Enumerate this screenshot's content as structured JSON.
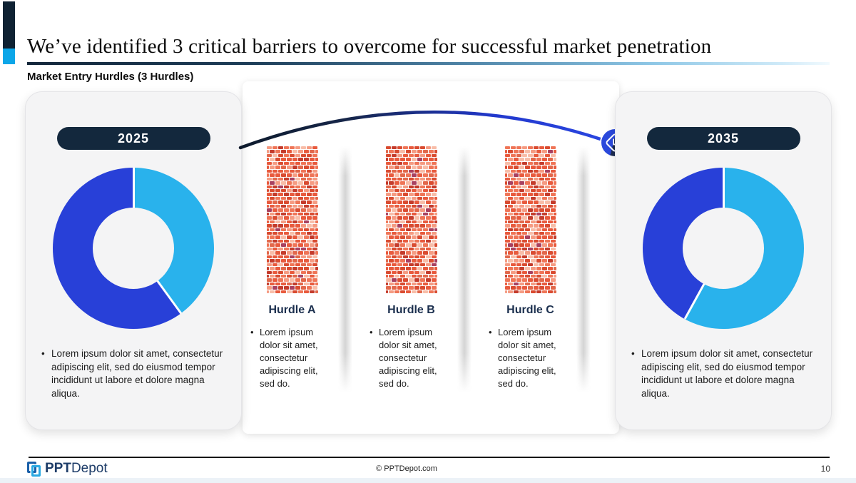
{
  "slide": {
    "title": "We’ve identified 3 critical barriers to overcome for successful market penetration",
    "subtitle": "Market Entry Hurdles (3 Hurdles)",
    "page_number": "10",
    "copyright": "© PPTDepot.com",
    "logo_bold": "PPT",
    "logo_regular": "Depot"
  },
  "timeline": {
    "start": {
      "year": "2025",
      "bullet": "Lorem ipsum dolor sit amet, consectetur adipiscing elit, sed do eiusmod tempor incididunt ut labore et dolore magna aliqua."
    },
    "end": {
      "year": "2035",
      "bullet": "Lorem ipsum dolor sit amet, consectetur adipiscing elit, sed do eiusmod tempor incididunt ut labore et dolore magna aliqua."
    }
  },
  "hurdles": [
    {
      "label": "Hurdle A",
      "bullet": "Lorem ipsum dolor sit amet, consectetur adipiscing elit, sed do."
    },
    {
      "label": "Hurdle B",
      "bullet": "Lorem ipsum dolor sit amet, consectetur adipiscing elit, sed do."
    },
    {
      "label": "Hurdle C",
      "bullet": "Lorem ipsum dolor sit amet, consectetur adipiscing elit, sed do."
    }
  ],
  "chart_data": [
    {
      "type": "pie",
      "subtype": "donut",
      "title": "2025",
      "hole_ratio": 0.5,
      "start_angle_deg": 0,
      "direction": "clockwise",
      "slices": [
        {
          "name": "light-blue-segment",
          "value": 40,
          "color": "#29b2ec"
        },
        {
          "name": "royal-blue-segment",
          "value": 60,
          "color": "#2840d8"
        }
      ]
    },
    {
      "type": "pie",
      "subtype": "donut",
      "title": "2035",
      "hole_ratio": 0.5,
      "start_angle_deg": 0,
      "direction": "clockwise",
      "slices": [
        {
          "name": "light-blue-segment",
          "value": 58,
          "color": "#29b2ec"
        },
        {
          "name": "royal-blue-segment",
          "value": 42,
          "color": "#2840d8"
        }
      ]
    }
  ],
  "colors": {
    "accent_navy": "#0f2233",
    "accent_cyan": "#0ca6e8",
    "year_pill_bg": "#13283d",
    "card_bg": "#f4f4f5",
    "hurdle_label": "#1b2f4e",
    "arc_dark": "#0d1a2c",
    "arc_blue": "#2341d6",
    "bottom_bar": "#ecf2f7",
    "footer_logo_navy": "#1d3c68",
    "footer_logo_cyan": "#2aa9e2"
  },
  "decor": {
    "brick_palette": [
      "#e85a3d",
      "#ef7557",
      "#d94b30",
      "#f59b82",
      "#f8bda8",
      "#c43b2b",
      "#e2684b",
      "#a8405f"
    ],
    "brick_weights": [
      0.28,
      0.17,
      0.15,
      0.12,
      0.09,
      0.08,
      0.07,
      0.04
    ],
    "brick_rows": 38,
    "bricks_per_row": 9
  }
}
